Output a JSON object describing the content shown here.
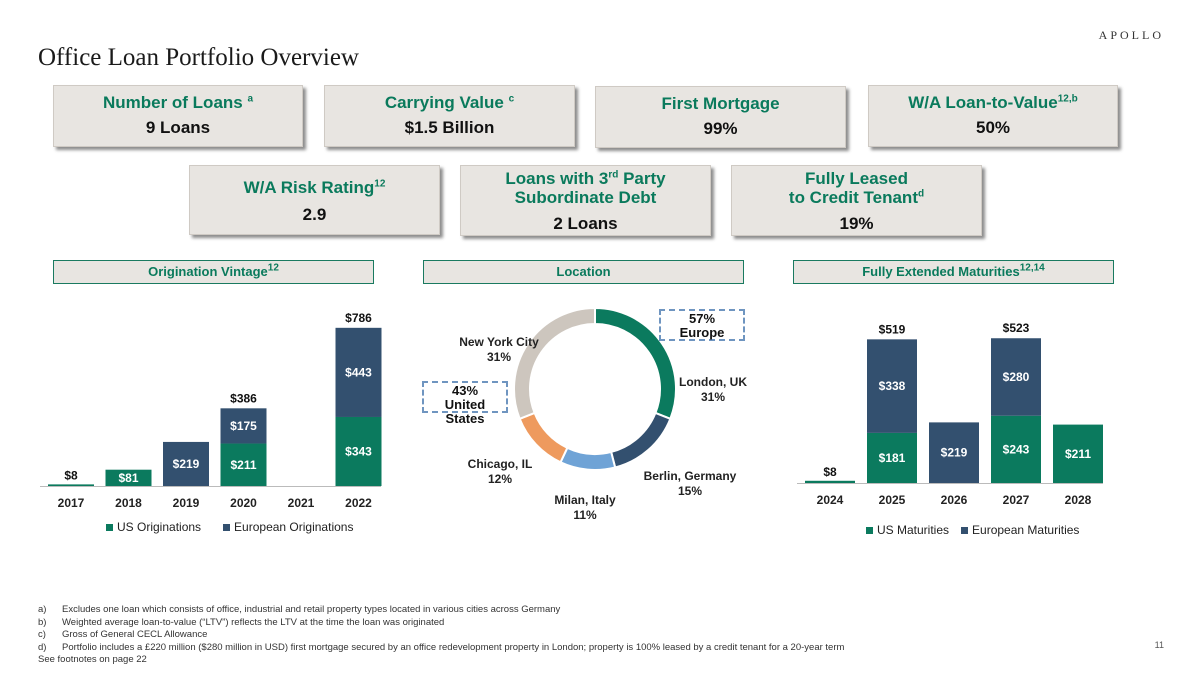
{
  "brand": "APOLLO",
  "title": "Office Loan Portfolio Overview",
  "kpis": [
    {
      "label": "Number of Loans",
      "sup": "a",
      "value": "9 Loans"
    },
    {
      "label": "Carrying Value",
      "sup": "c",
      "value": "$1.5 Billion"
    },
    {
      "label": "First Mortgage",
      "sup": "",
      "value": "99%"
    },
    {
      "label": "W/A Loan-to-Value",
      "sup": "12,b",
      "value": "50%"
    },
    {
      "label": "W/A Risk Rating",
      "sup": "12",
      "value": "2.9"
    },
    {
      "label_html_parts": [
        "Loans with 3",
        "rd",
        " Party",
        "Subordinate Debt"
      ],
      "value": "2 Loans"
    },
    {
      "label_line1": "Fully Leased",
      "label_line2": "to Credit Tenant",
      "sup": "d",
      "value": "19%"
    }
  ],
  "sections": {
    "vintage": {
      "label": "Origination Vintage",
      "sup": "12"
    },
    "location": {
      "label": "Location",
      "sup": ""
    },
    "maturities": {
      "label": "Fully Extended Maturities",
      "sup": "12,14"
    }
  },
  "colors": {
    "us": "#0b7a5e",
    "eu": "#33506f",
    "ny": "#cdc6be",
    "london": "#0b7a5e",
    "berlin": "#33506f",
    "milan": "#6fa3d6",
    "chicago": "#ee9a5e"
  },
  "chart_data": [
    {
      "type": "bar",
      "stacked": true,
      "categories": [
        "2017",
        "2018",
        "2019",
        "2020",
        "2021",
        "2022"
      ],
      "series": [
        {
          "name": "US Originations",
          "values": [
            8,
            81,
            0,
            211,
            0,
            343
          ],
          "labels": [
            "$8",
            "$81",
            "",
            "$211",
            "",
            "$343"
          ]
        },
        {
          "name": "European Originations",
          "values": [
            0,
            0,
            219,
            175,
            0,
            443
          ],
          "labels": [
            "",
            "",
            "$219",
            "$175",
            "",
            "$443"
          ]
        }
      ],
      "totals": [
        "",
        "",
        "",
        "$386",
        "",
        "$786"
      ],
      "ylim": [
        0,
        800
      ],
      "legend": "bottom"
    },
    {
      "type": "pie",
      "donut": true,
      "slices": [
        {
          "name": "London, UK",
          "value": 31,
          "label": "31%"
        },
        {
          "name": "Berlin, Germany",
          "value": 15,
          "label": "15%"
        },
        {
          "name": "Milan, Italy",
          "value": 11,
          "label": "11%"
        },
        {
          "name": "Chicago, IL",
          "value": 12,
          "label": "12%"
        },
        {
          "name": "New York City",
          "value": 31,
          "label": "31%"
        }
      ],
      "callouts": [
        {
          "pct": "57%",
          "text": "Europe"
        },
        {
          "pct": "43%",
          "text": "United States"
        }
      ]
    },
    {
      "type": "bar",
      "stacked": true,
      "categories": [
        "2024",
        "2025",
        "2026",
        "2027",
        "2028"
      ],
      "series": [
        {
          "name": "US Maturities",
          "values": [
            8,
            181,
            0,
            243,
            211
          ],
          "labels": [
            "$8",
            "$181",
            "",
            "$243",
            "$211"
          ]
        },
        {
          "name": "European Maturities",
          "values": [
            0,
            338,
            219,
            280,
            0
          ],
          "labels": [
            "",
            "$338",
            "$219",
            "$280",
            ""
          ]
        }
      ],
      "totals": [
        "",
        "$519",
        "",
        "$523",
        ""
      ],
      "ylim": [
        0,
        560
      ],
      "legend": "bottom"
    }
  ],
  "footnotes": [
    {
      "mark": "a)",
      "text": "Excludes one loan which consists of office, industrial and retail property types located in various cities across Germany"
    },
    {
      "mark": "b)",
      "text": "Weighted average loan-to-value (“LTV”) reflects the LTV at the time the loan was originated"
    },
    {
      "mark": "c)",
      "text": "Gross of General CECL Allowance"
    },
    {
      "mark": "d)",
      "text": "Portfolio includes a £220 million ($280 million in USD) first mortgage secured by an office redevelopment property in London; property is 100% leased by a credit tenant for a 20-year term"
    }
  ],
  "see_footnotes": "See footnotes on page 22",
  "page_number": "11"
}
